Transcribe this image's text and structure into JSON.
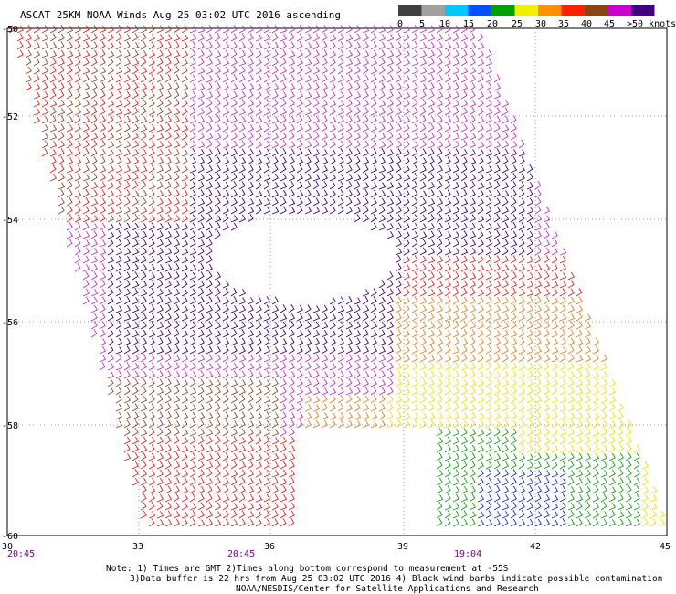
{
  "title": "ASCAT 25KM NOAA Winds Aug 25 03:02 UTC 2016 ascending",
  "legend": {
    "labels": [
      "0",
      "5",
      "10",
      "15",
      "20",
      "25",
      "30",
      "35",
      "40",
      "45",
      ">50 knots"
    ],
    "colors": [
      "#404040",
      "#a0a0a0",
      "#00c8ff",
      "#0050ff",
      "#00a000",
      "#f0f000",
      "#ff9000",
      "#ff2000",
      "#8b4513",
      "#cc00cc",
      "#400080"
    ]
  },
  "axes": {
    "lat_labels": [
      "-50",
      "-52",
      "-54",
      "-56",
      "-58",
      "-60"
    ],
    "lon_labels": [
      "30",
      "33",
      "36",
      "39",
      "42",
      "45"
    ]
  },
  "pass_times": [
    {
      "label": "20:45",
      "color": "#800080"
    },
    {
      "label": "20:45",
      "color": "#800080"
    },
    {
      "label": "19:04",
      "color": "#800080"
    }
  ],
  "notes": [
    "Note: 1) Times are GMT 2)Times along bottom correspond to measurement at -55S",
    "3)Data buffer is 22 hrs from Aug 25 03:02 UTC 2016 4) Black wind barbs indicate possible contamination",
    "NOAA/NESDIS/Center for Satellite Applications and Research"
  ]
}
